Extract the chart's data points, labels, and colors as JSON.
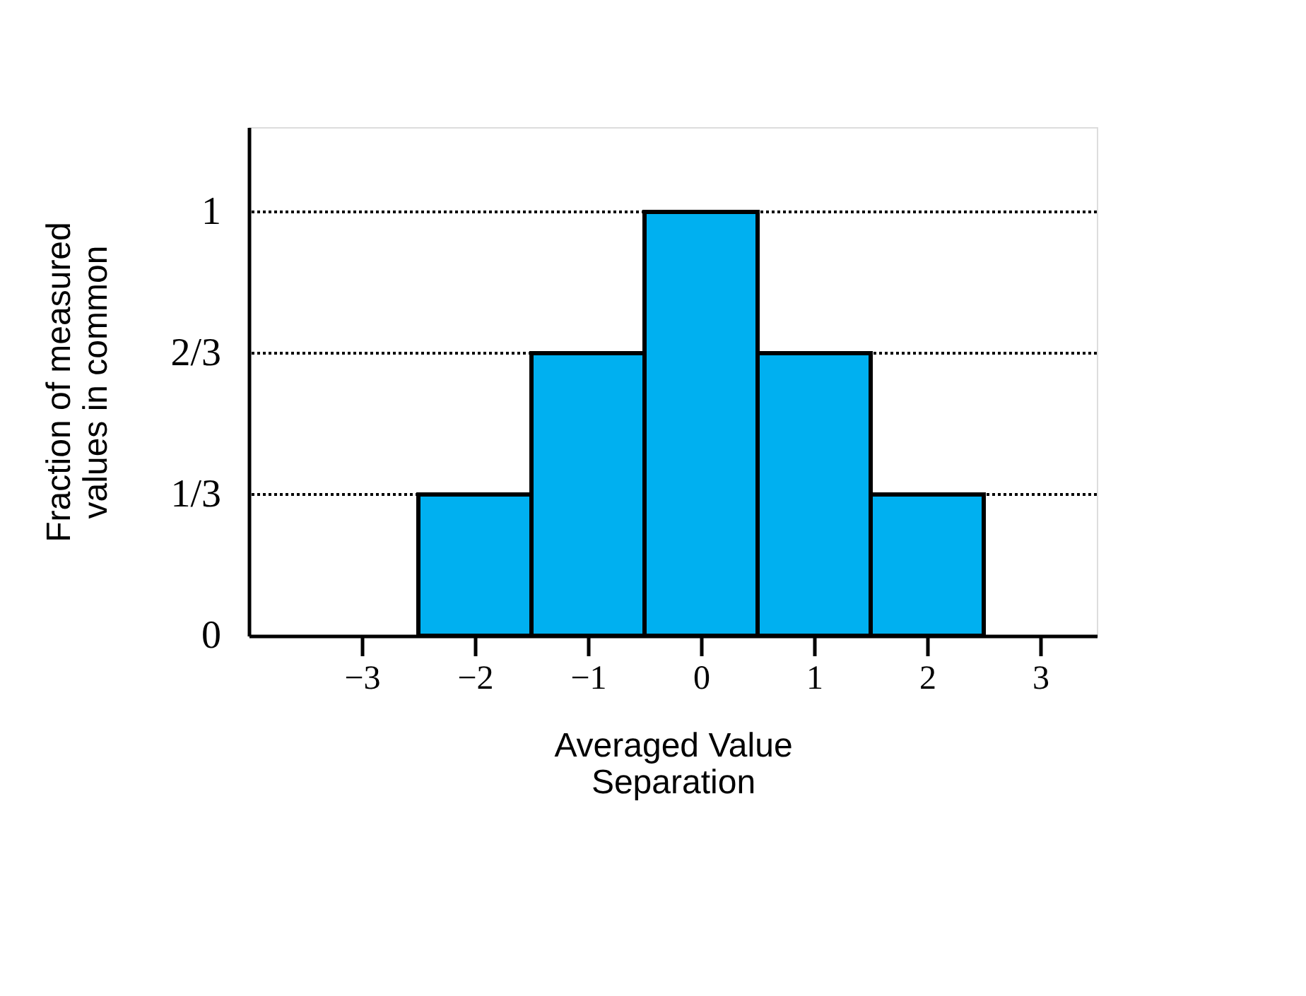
{
  "chart_data": {
    "type": "histogram",
    "xlabel": "Averaged Value\nSeparation",
    "ylabel": "Fraction of measured\nvalues in common",
    "bins": [
      -2.5,
      -1.5,
      -0.5,
      0.5,
      1.5,
      2.5
    ],
    "values": [
      0.3333,
      0.6667,
      1,
      0.6667,
      0.3333
    ],
    "color": "#00b0f0",
    "xlim": [
      -4,
      3.5
    ],
    "xticks": [
      -3,
      -2,
      -1,
      0,
      1,
      2,
      3
    ],
    "ylim": [
      0,
      1.2
    ],
    "yticks": [
      0,
      {
        "value": 0.3333,
        "label": "1/3"
      },
      {
        "value": 0.6667,
        "label": "2/3"
      },
      1
    ],
    "ref_lines": [
      {
        "axis": "y",
        "value": 0.3333,
        "line_style": "dotted"
      },
      {
        "axis": "y",
        "value": 0.6667,
        "line_style": "dotted"
      },
      {
        "axis": "y",
        "value": 1,
        "line_style": "dotted"
      }
    ],
    "grid": false
  }
}
